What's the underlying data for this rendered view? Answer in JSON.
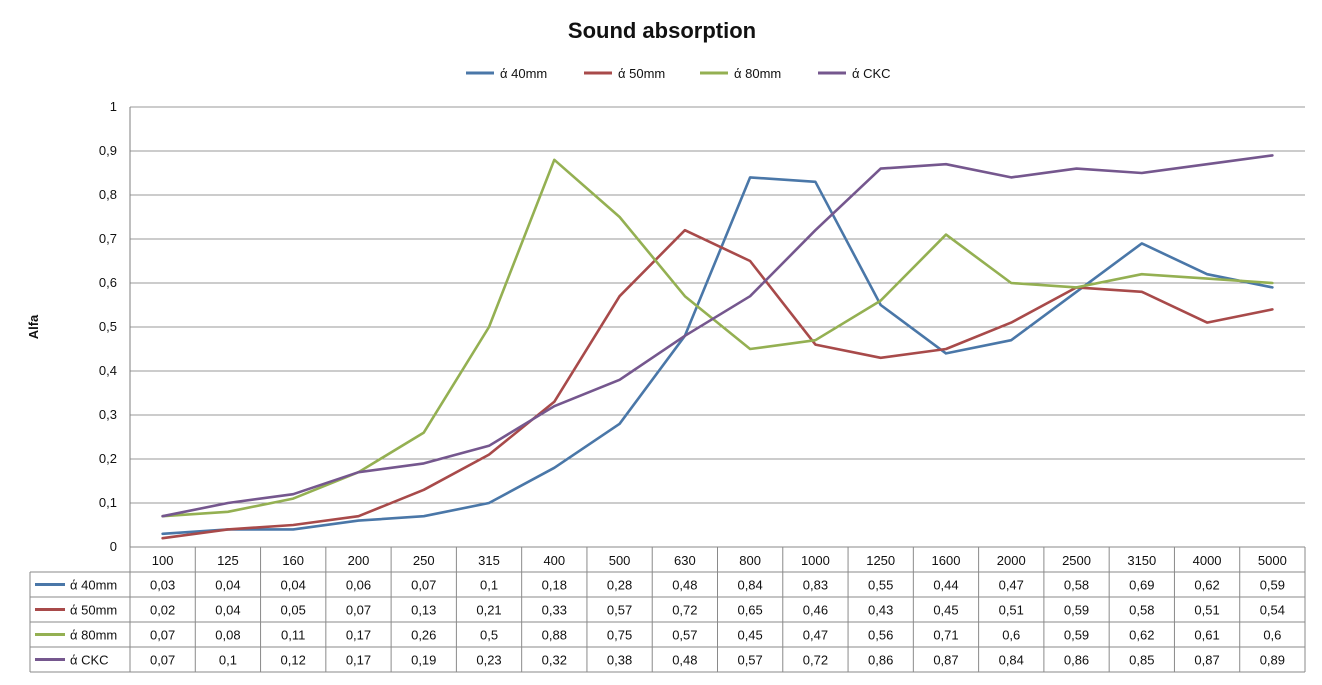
{
  "chart_data": {
    "type": "line",
    "title": "Sound absorption",
    "xlabel": "",
    "ylabel": "Alfa",
    "ylim": [
      0,
      1
    ],
    "yticks": [
      "0",
      "0,1",
      "0,2",
      "0,3",
      "0,4",
      "0,5",
      "0,6",
      "0,7",
      "0,8",
      "0,9",
      "1"
    ],
    "grid": true,
    "legend_position": "top",
    "data_table": true,
    "categories": [
      "100",
      "125",
      "160",
      "200",
      "250",
      "315",
      "400",
      "500",
      "630",
      "800",
      "1000",
      "1250",
      "1600",
      "2000",
      "2500",
      "3150",
      "4000",
      "5000"
    ],
    "series": [
      {
        "name": "ά 40mm",
        "color": "#4a77a8",
        "values": [
          0.03,
          0.04,
          0.04,
          0.06,
          0.07,
          0.1,
          0.18,
          0.28,
          0.48,
          0.84,
          0.83,
          0.55,
          0.44,
          0.47,
          0.58,
          0.69,
          0.62,
          0.59
        ],
        "labels": [
          "0,03",
          "0,04",
          "0,04",
          "0,06",
          "0,07",
          "0,1",
          "0,18",
          "0,28",
          "0,48",
          "0,84",
          "0,83",
          "0,55",
          "0,44",
          "0,47",
          "0,58",
          "0,69",
          "0,62",
          "0,59"
        ]
      },
      {
        "name": "ά 50mm",
        "color": "#a84a4a",
        "values": [
          0.02,
          0.04,
          0.05,
          0.07,
          0.13,
          0.21,
          0.33,
          0.57,
          0.72,
          0.65,
          0.46,
          0.43,
          0.45,
          0.51,
          0.59,
          0.58,
          0.51,
          0.54
        ],
        "labels": [
          "0,02",
          "0,04",
          "0,05",
          "0,07",
          "0,13",
          "0,21",
          "0,33",
          "0,57",
          "0,72",
          "0,65",
          "0,46",
          "0,43",
          "0,45",
          "0,51",
          "0,59",
          "0,58",
          "0,51",
          "0,54"
        ]
      },
      {
        "name": "ά 80mm",
        "color": "#94b052",
        "values": [
          0.07,
          0.08,
          0.11,
          0.17,
          0.26,
          0.5,
          0.88,
          0.75,
          0.57,
          0.45,
          0.47,
          0.56,
          0.71,
          0.6,
          0.59,
          0.62,
          0.61,
          0.6
        ],
        "labels": [
          "0,07",
          "0,08",
          "0,11",
          "0,17",
          "0,26",
          "0,5",
          "0,88",
          "0,75",
          "0,57",
          "0,45",
          "0,47",
          "0,56",
          "0,71",
          "0,6",
          "0,59",
          "0,62",
          "0,61",
          "0,6"
        ]
      },
      {
        "name": "ά CKC",
        "color": "#75578e",
        "values": [
          0.07,
          0.1,
          0.12,
          0.17,
          0.19,
          0.23,
          0.32,
          0.38,
          0.48,
          0.57,
          0.72,
          0.86,
          0.87,
          0.84,
          0.86,
          0.85,
          0.87,
          0.89
        ],
        "labels": [
          "0,07",
          "0,1",
          "0,12",
          "0,17",
          "0,19",
          "0,23",
          "0,32",
          "0,38",
          "0,48",
          "0,57",
          "0,72",
          "0,86",
          "0,87",
          "0,84",
          "0,86",
          "0,85",
          "0,87",
          "0,89"
        ]
      }
    ]
  }
}
